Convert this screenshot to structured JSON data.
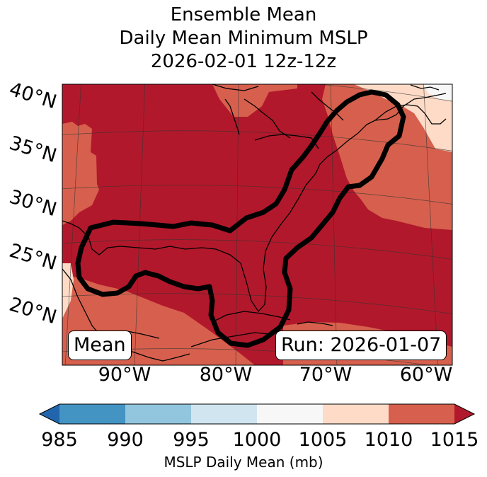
{
  "title": {
    "line1": "Ensemble Mean",
    "line2": "Daily Mean Minimum MSLP",
    "line3": "2026-02-01 12z-12z"
  },
  "map": {
    "lat_labels": [
      "40°N",
      "35°N",
      "30°N",
      "25°N",
      "20°N"
    ],
    "lon_labels": [
      "90°W",
      "80°W",
      "70°W",
      "60°W"
    ],
    "stat_box": "Mean",
    "run_box": "Run: 2026-01-07",
    "extent": {
      "lon_min": -97,
      "lon_max": -58,
      "lat_min": 15,
      "lat_max": 41
    },
    "field_colors": {
      "1005-1010": "#fddbc7",
      "1010-1015": "#d6604d",
      "above_1015": "#b2182b"
    },
    "contour_color": "#000000",
    "contour_description": "outline of highest-probability region (Gulf of Mexico to US East Coast)"
  },
  "colorbar": {
    "ticks": [
      "985",
      "990",
      "995",
      "1000",
      "1005",
      "1010",
      "1015"
    ],
    "colors": [
      "#4393c3",
      "#92c5de",
      "#d1e5f0",
      "#f7f7f7",
      "#fddbc7",
      "#d6604d"
    ],
    "under_color": "#2166ac",
    "over_color": "#b2182b",
    "label": "MSLP Daily Mean (mb)"
  }
}
